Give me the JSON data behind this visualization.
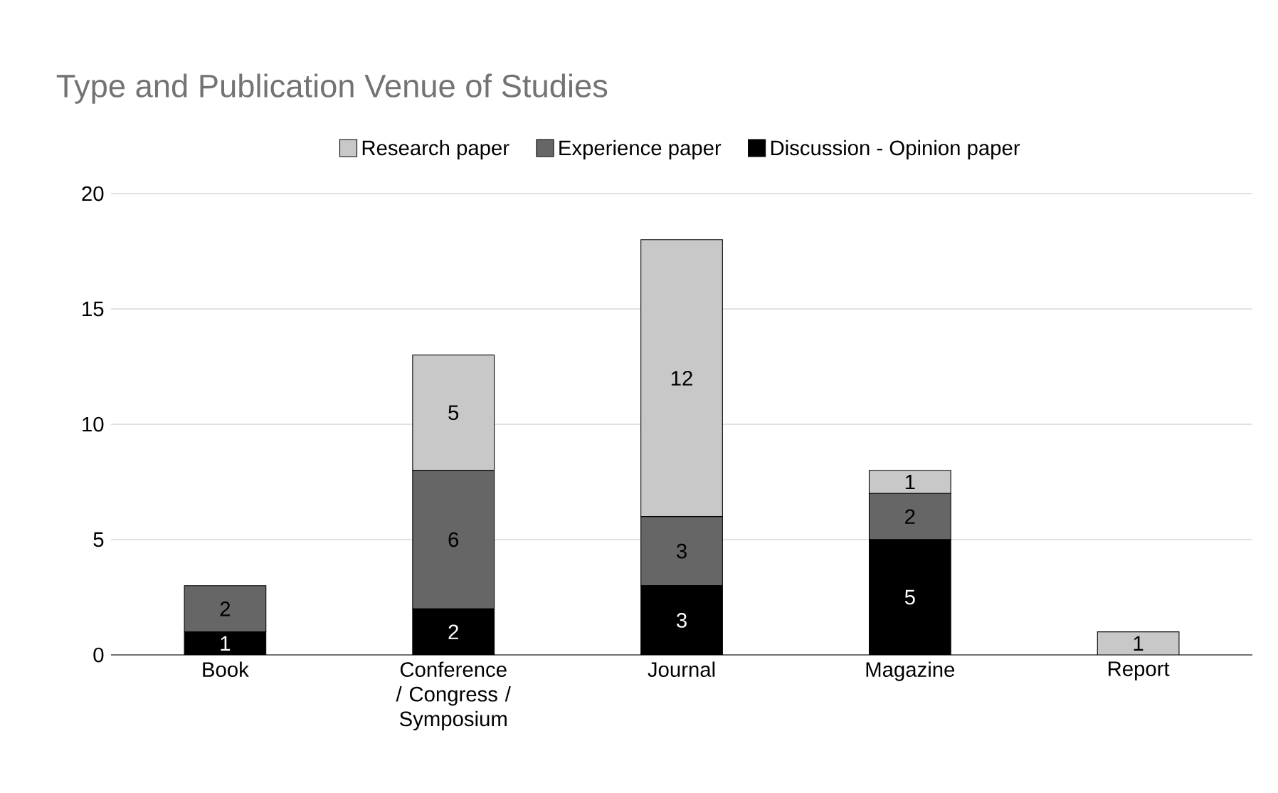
{
  "chart_data": {
    "type": "bar",
    "title": "Type and Publication Venue of Studies",
    "stacked": true,
    "legend": "top",
    "grid": "y",
    "categories": [
      "Book",
      "Conference / Congress / Symposium",
      "Journal",
      "Magazine",
      "Report"
    ],
    "ylim": [
      0,
      20
    ],
    "yticks": [
      0,
      5,
      10,
      15,
      20
    ],
    "series": [
      {
        "name": "Discussion - Opinion paper",
        "color": "#000000",
        "values": [
          1,
          2,
          3,
          5,
          null
        ],
        "value_labels": [
          "1",
          "2",
          "3",
          "5",
          null
        ]
      },
      {
        "name": "Experience paper",
        "color": "#666666",
        "values": [
          2,
          6,
          3,
          2,
          null
        ],
        "value_labels": [
          "2",
          "6",
          "3",
          "2",
          null
        ]
      },
      {
        "name": "Research paper",
        "color": "#c8c8c8",
        "values": [
          null,
          5,
          12,
          1,
          1
        ],
        "value_labels": [
          null,
          "5",
          "12",
          "1",
          "1"
        ]
      }
    ]
  }
}
